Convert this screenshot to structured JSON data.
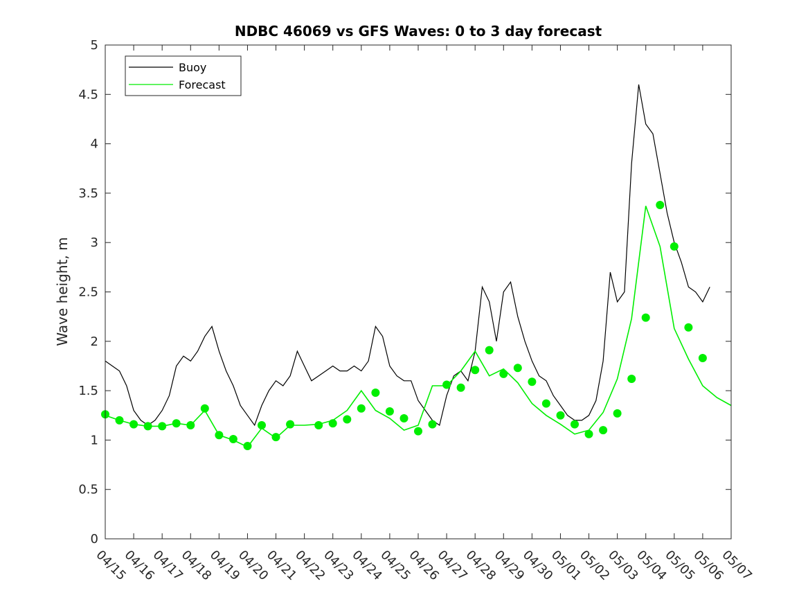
{
  "chart_data": {
    "type": "line",
    "title": "NDBC 46069 vs GFS Waves: 0 to 3 day forecast",
    "xlabel": "",
    "ylabel": "Wave height, m",
    "xlim_days": [
      0,
      22
    ],
    "ylim": [
      0,
      5
    ],
    "y_ticks": [
      "0",
      "0.5",
      "1",
      "1.5",
      "2",
      "2.5",
      "3",
      "3.5",
      "4",
      "4.5",
      "5"
    ],
    "x_ticks": [
      "04/15",
      "04/16",
      "04/17",
      "04/18",
      "04/19",
      "04/20",
      "04/21",
      "04/22",
      "04/23",
      "04/24",
      "04/25",
      "04/26",
      "04/27",
      "04/28",
      "04/29",
      "04/30",
      "05/01",
      "05/02",
      "05/03",
      "05/04",
      "05/05",
      "05/06",
      "05/07"
    ],
    "legend": {
      "position": "top-left",
      "entries": [
        {
          "label": "Buoy",
          "color": "#000000"
        },
        {
          "label": "Forecast",
          "color": "#00ee00"
        }
      ]
    },
    "series": [
      {
        "name": "Buoy",
        "color": "#000000",
        "x": [
          0,
          0.25,
          0.5,
          0.75,
          1.0,
          1.25,
          1.5,
          1.75,
          2.0,
          2.25,
          2.5,
          2.75,
          3.0,
          3.25,
          3.5,
          3.75,
          4.0,
          4.25,
          4.5,
          4.75,
          5.0,
          5.25,
          5.5,
          5.75,
          6.0,
          6.25,
          6.5,
          6.75,
          7.0,
          7.25,
          7.5,
          7.75,
          8.0,
          8.25,
          8.5,
          8.75,
          9.0,
          9.25,
          9.5,
          9.75,
          10.0,
          10.25,
          10.5,
          10.75,
          11.0,
          11.25,
          11.5,
          11.75,
          12.0,
          12.25,
          12.5,
          12.75,
          13.0,
          13.25,
          13.5,
          13.75,
          14.0,
          14.25,
          14.5,
          14.75,
          15.0,
          15.25,
          15.5,
          15.75,
          16.0,
          16.25,
          16.5,
          16.75,
          17.0,
          17.25,
          17.5,
          17.75,
          18.0,
          18.25,
          18.5,
          18.75,
          19.0,
          19.25,
          19.5,
          19.75,
          20.0,
          20.25,
          20.5,
          20.75,
          21.0,
          21.25
        ],
        "values": [
          1.8,
          1.75,
          1.7,
          1.55,
          1.3,
          1.2,
          1.15,
          1.2,
          1.3,
          1.45,
          1.75,
          1.85,
          1.8,
          1.9,
          2.05,
          2.15,
          1.9,
          1.7,
          1.55,
          1.35,
          1.25,
          1.15,
          1.35,
          1.5,
          1.6,
          1.55,
          1.65,
          1.9,
          1.75,
          1.6,
          1.65,
          1.7,
          1.75,
          1.7,
          1.7,
          1.75,
          1.7,
          1.8,
          2.15,
          2.05,
          1.75,
          1.65,
          1.6,
          1.6,
          1.4,
          1.3,
          1.2,
          1.15,
          1.45,
          1.65,
          1.7,
          1.6,
          1.9,
          2.55,
          2.4,
          2.0,
          2.5,
          2.6,
          2.25,
          2.0,
          1.8,
          1.65,
          1.6,
          1.45,
          1.35,
          1.25,
          1.2,
          1.2,
          1.25,
          1.4,
          1.8,
          2.7,
          2.4,
          2.5,
          3.8,
          4.6,
          4.2,
          4.1,
          3.7,
          3.3,
          3.0,
          2.8,
          2.55,
          2.5,
          2.4,
          2.55
        ]
      },
      {
        "name": "Forecast",
        "color": "#00ee00",
        "x": [
          0,
          0.5,
          1.0,
          1.5,
          2.0,
          2.5,
          3.0,
          3.5,
          4.0,
          4.5,
          5.0,
          5.5,
          6.0,
          6.5,
          7.0,
          7.5,
          8.0,
          8.5,
          9.0,
          9.5,
          10.0,
          10.5,
          11.0,
          11.5,
          12.0,
          12.5,
          13.0,
          13.5,
          14.0,
          14.5,
          15.0,
          15.5,
          16.0,
          16.5,
          17.0,
          17.5,
          18.0,
          18.5,
          19.0,
          19.5,
          20.0,
          20.5,
          21.0,
          21.5,
          22.0
        ],
        "values": [
          1.25,
          1.2,
          1.16,
          1.14,
          1.14,
          1.17,
          1.15,
          1.3,
          1.05,
          1.0,
          0.93,
          1.12,
          1.02,
          1.15,
          1.15,
          1.16,
          1.2,
          1.3,
          1.5,
          1.3,
          1.22,
          1.1,
          1.15,
          1.55,
          1.55,
          1.7,
          1.9,
          1.65,
          1.72,
          1.58,
          1.37,
          1.25,
          1.16,
          1.06,
          1.1,
          1.28,
          1.62,
          2.23,
          3.37,
          2.96,
          2.13,
          1.82,
          1.55,
          1.43,
          1.35
        ]
      }
    ],
    "forecast_markers": {
      "x": [
        0,
        0.5,
        1.0,
        1.5,
        2.0,
        2.5,
        3.0,
        3.5,
        4.0,
        4.5,
        5.0,
        5.5,
        6.0,
        6.5,
        7.5,
        8.0,
        8.5,
        9.0,
        9.5,
        10.0,
        10.5,
        11.0,
        11.5,
        12.0,
        12.5,
        13.0,
        13.5,
        14.0,
        14.5,
        15.0,
        15.5,
        16.0,
        16.5,
        17.0,
        17.5,
        18.0,
        18.5,
        19.0,
        19.5,
        20.0,
        20.5,
        21.0
      ],
      "values": [
        1.26,
        1.2,
        1.16,
        1.14,
        1.14,
        1.17,
        1.15,
        1.32,
        1.05,
        1.01,
        0.94,
        1.15,
        1.03,
        1.16,
        1.15,
        1.17,
        1.21,
        1.32,
        1.48,
        1.29,
        1.22,
        1.09,
        1.16,
        1.56,
        1.53,
        1.71,
        1.91,
        1.67,
        1.73,
        1.59,
        1.37,
        1.25,
        1.16,
        1.06,
        1.1,
        1.27,
        1.62,
        2.24,
        3.38,
        2.96,
        2.14,
        1.83
      ]
    }
  }
}
